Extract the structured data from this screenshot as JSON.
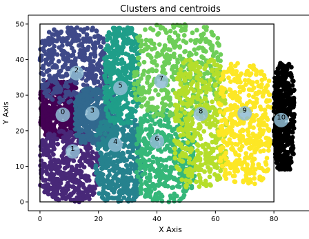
{
  "chart_data": {
    "type": "scatter",
    "title": "Clusters and centroids",
    "xlabel": "X Axis",
    "ylabel": "Y Axis",
    "xlim": [
      -4,
      92
    ],
    "ylim": [
      -2.5,
      52.5
    ],
    "xticks": [
      0,
      20,
      40,
      60,
      80
    ],
    "yticks": [
      0,
      10,
      20,
      30,
      40,
      50
    ],
    "grid": false,
    "legend": "none",
    "boundary_rectangle": {
      "x": [
        0,
        80
      ],
      "y": [
        0,
        50
      ]
    },
    "clusters": [
      {
        "id": 0,
        "color": "#440154",
        "bounds": {
          "x": [
            0,
            13
          ],
          "y": [
            18,
            34
          ]
        }
      },
      {
        "id": 1,
        "color": "#482878",
        "bounds": {
          "x": [
            0,
            20
          ],
          "y": [
            0,
            20
          ]
        }
      },
      {
        "id": 2,
        "color": "#3e4989",
        "bounds": {
          "x": [
            0,
            24
          ],
          "y": [
            28,
            49
          ]
        }
      },
      {
        "id": 3,
        "color": "#31688e",
        "bounds": {
          "x": [
            12,
            26
          ],
          "y": [
            16,
            32
          ]
        }
      },
      {
        "id": 4,
        "color": "#26828e",
        "bounds": {
          "x": [
            19,
            35
          ],
          "y": [
            0,
            24
          ]
        }
      },
      {
        "id": 5,
        "color": "#1f9e89",
        "bounds": {
          "x": [
            22,
            34
          ],
          "y": [
            22,
            49
          ]
        }
      },
      {
        "id": 6,
        "color": "#35b779",
        "bounds": {
          "x": [
            33,
            53
          ],
          "y": [
            0,
            26
          ]
        }
      },
      {
        "id": 7,
        "color": "#6ece58",
        "bounds": {
          "x": [
            32,
            62
          ],
          "y": [
            24,
            50
          ]
        }
      },
      {
        "id": 8,
        "color": "#b5de2b",
        "bounds": {
          "x": [
            46,
            64
          ],
          "y": [
            4,
            40
          ]
        }
      },
      {
        "id": 9,
        "color": "#fde725",
        "bounds": {
          "x": [
            61,
            79
          ],
          "y": [
            5,
            39
          ]
        }
      },
      {
        "id": 10,
        "color": "#000000",
        "bounds": {
          "x": [
            80,
            87
          ],
          "y": [
            9,
            39
          ]
        }
      }
    ],
    "centroids": [
      {
        "label": "0",
        "x": 7.8,
        "y": 24.5
      },
      {
        "label": "1",
        "x": 11.2,
        "y": 14.2
      },
      {
        "label": "2",
        "x": 12.5,
        "y": 36.2
      },
      {
        "label": "3",
        "x": 17.9,
        "y": 24.9
      },
      {
        "label": "4",
        "x": 25.8,
        "y": 16.1
      },
      {
        "label": "5",
        "x": 27.5,
        "y": 32.0
      },
      {
        "label": "6",
        "x": 40.0,
        "y": 17.0
      },
      {
        "label": "7",
        "x": 41.5,
        "y": 33.9
      },
      {
        "label": "8",
        "x": 55.0,
        "y": 24.7
      },
      {
        "label": "9",
        "x": 70.0,
        "y": 24.9
      },
      {
        "label": "10",
        "x": 82.5,
        "y": 23.0
      }
    ],
    "centroid_color": "#8fbcd4"
  }
}
